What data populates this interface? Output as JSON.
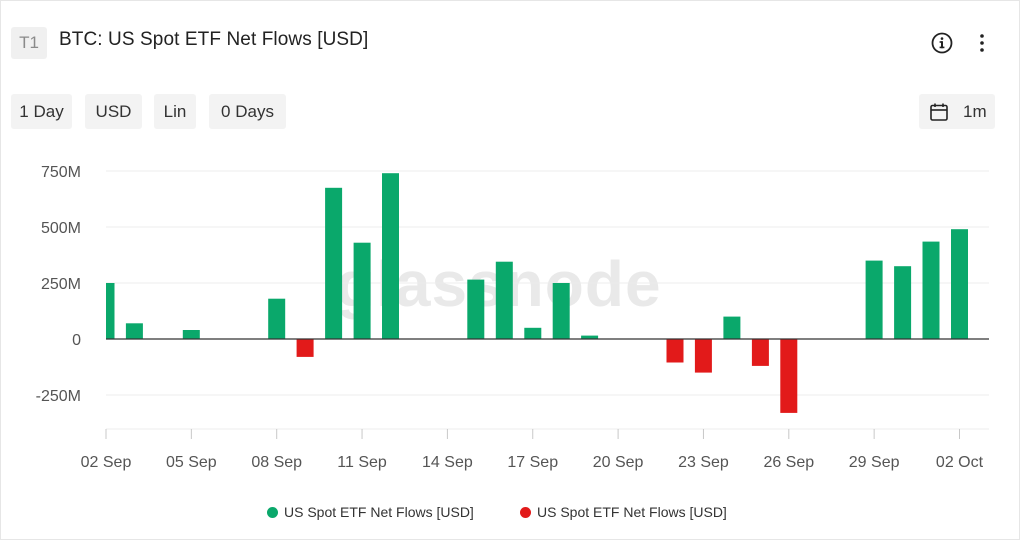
{
  "header": {
    "badge": "T1",
    "title": "BTC: US Spot ETF Net Flows [USD]",
    "info_icon": "info-icon",
    "more_icon": "more-vertical-icon"
  },
  "toolbar": {
    "resolution": "1 Day",
    "currency": "USD",
    "scale": "Lin",
    "moving_average": "0 Days",
    "range_icon": "calendar-icon",
    "range": "1m"
  },
  "watermark": "glassnode",
  "colors": {
    "positive": "#0aa86b",
    "negative": "#e21a1a",
    "axis": "#333333",
    "grid": "#ececec"
  },
  "chart_data": {
    "type": "bar",
    "x_start": "2024-09-02",
    "x": [
      "02 Sep",
      "03 Sep",
      "04 Sep",
      "05 Sep",
      "06 Sep",
      "07 Sep",
      "08 Sep",
      "09 Sep",
      "10 Sep",
      "11 Sep",
      "12 Sep",
      "13 Sep",
      "14 Sep",
      "15 Sep",
      "16 Sep",
      "17 Sep",
      "18 Sep",
      "19 Sep",
      "20 Sep",
      "21 Sep",
      "22 Sep",
      "23 Sep",
      "24 Sep",
      "25 Sep",
      "26 Sep",
      "27 Sep",
      "28 Sep",
      "29 Sep",
      "30 Sep",
      "01 Oct",
      "02 Oct"
    ],
    "values": [
      250000000,
      70000000,
      0,
      40000000,
      0,
      0,
      180000000,
      -80000000,
      675000000,
      430000000,
      740000000,
      0,
      0,
      265000000,
      345000000,
      50000000,
      250000000,
      15000000,
      0,
      0,
      -105000000,
      -150000000,
      100000000,
      -120000000,
      -330000000,
      0,
      0,
      350000000,
      325000000,
      435000000,
      490000000
    ],
    "x_tick_labels": [
      "02 Sep",
      "05 Sep",
      "08 Sep",
      "11 Sep",
      "14 Sep",
      "17 Sep",
      "20 Sep",
      "23 Sep",
      "26 Sep",
      "29 Sep",
      "02 Oct"
    ],
    "y_ticks": [
      750000000,
      500000000,
      250000000,
      0,
      -250000000
    ],
    "y_tick_labels": [
      "750M",
      "500M",
      "250M",
      "0",
      "-250M"
    ],
    "ylim": [
      -410000000,
      760000000
    ],
    "grid": true,
    "legend_position": "bottom-center",
    "series": [
      {
        "name": "US Spot ETF Net Flows [USD]",
        "color": "#0aa86b",
        "sign": "positive"
      },
      {
        "name": "US Spot ETF Net Flows [USD]",
        "color": "#e21a1a",
        "sign": "negative"
      }
    ]
  }
}
